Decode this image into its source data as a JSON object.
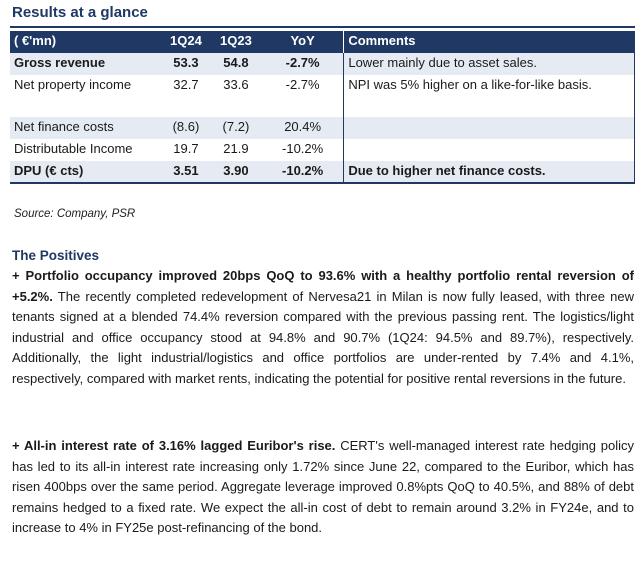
{
  "title": "Results at a glance",
  "table": {
    "headers": [
      "( €'mn)",
      "1Q24",
      "1Q23",
      "YoY",
      "Comments"
    ],
    "rows": [
      {
        "label": "Gross revenue",
        "q124": "53.3",
        "q123": "54.8",
        "yoy": "-2.7%",
        "comment": "Lower mainly due to asset sales."
      },
      {
        "label": "Net property income",
        "q124": "32.7",
        "q123": "33.6",
        "yoy": "-2.7%",
        "comment": "NPI was 5% higher on a like-for-like basis."
      },
      {
        "label": "Net finance costs",
        "q124": "(8.6)",
        "q123": "(7.2)",
        "yoy": "20.4%",
        "comment": ""
      },
      {
        "label": "Distributable Income",
        "q124": "19.7",
        "q123": "21.9",
        "yoy": "-10.2%",
        "comment": ""
      },
      {
        "label": "DPU (€ cts)",
        "q124": "3.51",
        "q123": "3.90",
        "yoy": "-10.2%",
        "comment": "Due to higher net finance costs."
      }
    ]
  },
  "source": "Source: Company, PSR",
  "positives": {
    "title": "The Positives",
    "p1_lead": "+ Portfolio occupancy improved 20bps QoQ to 93.6% with a healthy portfolio rental reversion of +5.2%.",
    "p1_body": " The recently completed redevelopment of Nervesa21 in Milan is now fully leased, with three new tenants signed at a blended 74.4% reversion compared with the previous passing rent. The logistics/light industrial and office occupancy stood at 94.8% and 90.7% (1Q24: 94.5% and 89.7%), respectively. Additionally, the light industrial/logistics and office portfolios are under-rented by 7.4% and 4.1%, respectively, compared with market rents, indicating the potential for positive rental reversions in the future.",
    "p2_lead": "+ All-in interest rate of 3.16% lagged Euribor's rise.",
    "p2_body": " CERT's well-managed interest rate hedging policy has led to its all-in interest rate increasing only 1.72% since June 22, compared to the Euribor, which has risen 400bps over the same period. Aggregate leverage improved 0.8%pts QoQ to 40.5%, and 88% of debt remains hedged to a fixed rate. We expect the all-in cost of debt to remain around 3.2% in FY24e, and to increase to 4% in FY25e post-refinancing of the bond."
  }
}
